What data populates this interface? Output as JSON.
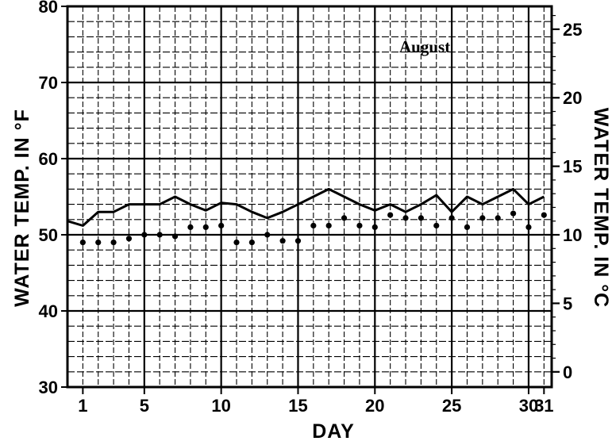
{
  "chart_data": {
    "type": "line",
    "month_label": "August",
    "xlabel": "DAY",
    "ylabel_left": "WATER TEMP. IN °F",
    "ylabel_right": "WATER TEMP. IN °C",
    "xlim": [
      0,
      31.5
    ],
    "ylim": [
      30,
      80
    ],
    "ylim_right": [
      -1.11,
      26.67
    ],
    "x_ticks": [
      {
        "value": 1,
        "label": "1"
      },
      {
        "value": 5,
        "label": "5"
      },
      {
        "value": 10,
        "label": "10"
      },
      {
        "value": 15,
        "label": "15"
      },
      {
        "value": 20,
        "label": "20"
      },
      {
        "value": 25,
        "label": "25"
      },
      {
        "value": 30,
        "label": "30"
      },
      {
        "value": 31,
        "label": "31"
      }
    ],
    "y_ticks_left": [
      30,
      40,
      50,
      60,
      70,
      80
    ],
    "y_ticks_right": [
      0,
      5,
      10,
      15,
      20,
      25
    ],
    "grid": true,
    "series": [
      {
        "style": "solid-line",
        "x": [
          0,
          1,
          2,
          3,
          4,
          5,
          6,
          7,
          8,
          9,
          10,
          11,
          12,
          13,
          14,
          15,
          16,
          17,
          18,
          19,
          20,
          21,
          22,
          23,
          24,
          25,
          26,
          27,
          28,
          29,
          30,
          31
        ],
        "y": [
          51.8,
          51.2,
          53,
          53,
          54,
          54,
          54,
          55,
          54,
          53.2,
          54.2,
          54,
          53,
          52.2,
          53,
          54,
          55,
          56,
          55,
          54,
          53.2,
          54,
          53,
          54,
          55.2,
          53,
          55,
          54,
          55,
          56,
          54,
          55
        ]
      },
      {
        "style": "dots",
        "x": [
          1,
          2,
          3,
          4,
          5,
          6,
          7,
          8,
          9,
          10,
          11,
          12,
          13,
          14,
          15,
          16,
          17,
          18,
          19,
          20,
          21,
          22,
          23,
          24,
          25,
          26,
          27,
          28,
          29,
          30,
          31
        ],
        "y": [
          49,
          49,
          49,
          49.5,
          50,
          50,
          49.8,
          51,
          51,
          51.2,
          49,
          49,
          50,
          49.2,
          49.2,
          51.2,
          51.2,
          52.2,
          51.2,
          51,
          52.6,
          52.2,
          52.2,
          51.2,
          52.2,
          51,
          52.2,
          52.2,
          52.8,
          51,
          52.6
        ]
      }
    ]
  }
}
